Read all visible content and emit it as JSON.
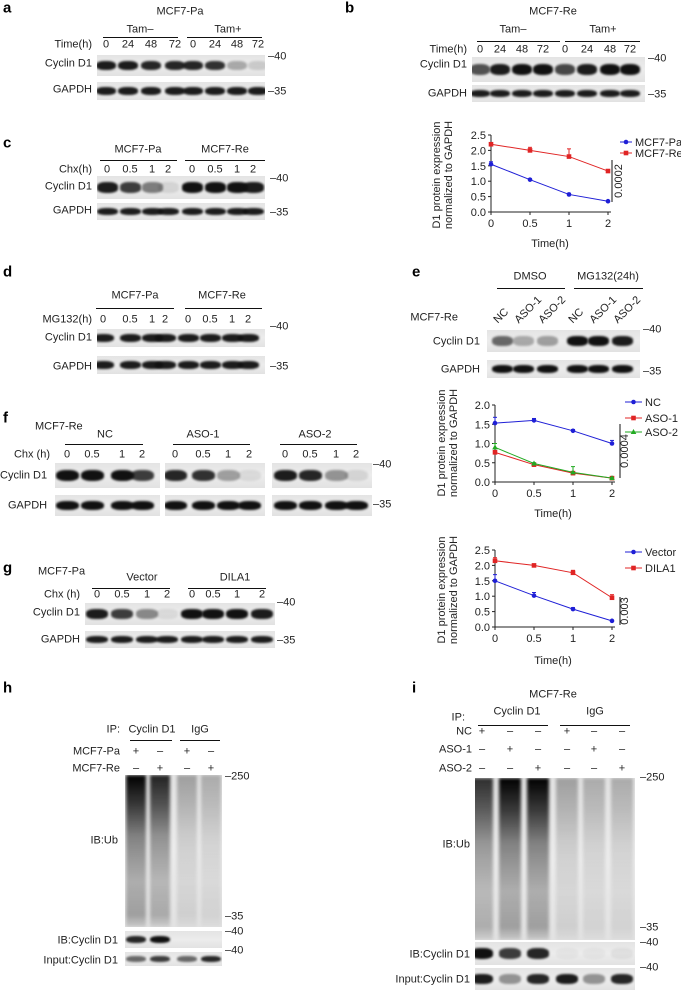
{
  "panels": {
    "a": {
      "letter": "a",
      "title": "MCF7-Pa",
      "groups": [
        "Tam–",
        "Tam+"
      ],
      "row_label": "Time(h)",
      "lanes": [
        "0",
        "24",
        "48",
        "72",
        "0",
        "24",
        "48",
        "72"
      ],
      "blots": [
        {
          "label": "Cyclin D1",
          "intensity": [
            0.95,
            0.95,
            0.9,
            0.9,
            0.9,
            0.85,
            0.3,
            0.15
          ]
        },
        {
          "label": "GAPDH",
          "intensity": [
            0.95,
            0.95,
            0.95,
            0.95,
            0.95,
            0.95,
            0.95,
            0.95
          ]
        }
      ],
      "markers": [
        "40",
        "35"
      ]
    },
    "b": {
      "letter": "b",
      "title": "MCF7-Re",
      "groups": [
        "Tam–",
        "Tam+"
      ],
      "row_label": "Time(h)",
      "lanes": [
        "0",
        "24",
        "48",
        "72",
        "0",
        "24",
        "48",
        "72"
      ],
      "blots": [
        {
          "label": "Cyclin D1",
          "intensity": [
            0.7,
            0.95,
            1,
            1,
            0.75,
            0.95,
            1,
            1
          ]
        },
        {
          "label": "GAPDH",
          "intensity": [
            0.95,
            0.95,
            0.95,
            0.95,
            0.95,
            0.95,
            0.95,
            0.95
          ]
        }
      ],
      "markers": [
        "40",
        "35"
      ]
    },
    "c": {
      "letter": "c",
      "groups": [
        "MCF7-Pa",
        "MCF7-Re"
      ],
      "row_label": "Chx(h)",
      "lanes": [
        "0",
        "0.5",
        "1",
        "2",
        "0",
        "0.5",
        "1",
        "2"
      ],
      "blots": [
        {
          "label": "Cyclin D1",
          "intensity": [
            0.95,
            0.8,
            0.5,
            0.1,
            1,
            1,
            1,
            0.95
          ]
        },
        {
          "label": "GAPDH",
          "intensity": [
            0.95,
            0.95,
            0.95,
            0.95,
            0.95,
            0.95,
            0.95,
            0.95
          ]
        }
      ],
      "markers": [
        "40",
        "35"
      ]
    },
    "d": {
      "letter": "d",
      "groups": [
        "MCF7-Pa",
        "MCF7-Re"
      ],
      "row_label": "MG132(h)",
      "lanes": [
        "0",
        "0.5",
        "1",
        "2",
        "0",
        "0.5",
        "1",
        "2"
      ],
      "blots": [
        {
          "label": "Cyclin D1",
          "intensity": [
            0.95,
            0.95,
            0.95,
            0.95,
            0.95,
            0.95,
            0.95,
            0.95
          ]
        },
        {
          "label": "GAPDH",
          "intensity": [
            0.95,
            0.95,
            0.95,
            0.95,
            0.95,
            0.95,
            0.95,
            0.95
          ]
        }
      ],
      "markers": [
        "40",
        "35"
      ]
    },
    "e": {
      "letter": "e",
      "groups": [
        "DMSO",
        "MG132(24h)"
      ],
      "row_label": "MCF7-Re",
      "lanes": [
        "NC",
        "ASO-1",
        "ASO-2",
        "NC",
        "ASO-1",
        "ASO-2"
      ],
      "blots": [
        {
          "label": "Cyclin D1",
          "intensity": [
            0.6,
            0.3,
            0.35,
            1,
            1,
            0.95
          ]
        },
        {
          "label": "GAPDH",
          "intensity": [
            1,
            1,
            1,
            1,
            1,
            1
          ]
        }
      ],
      "markers": [
        "40",
        "35"
      ]
    },
    "f": {
      "letter": "f",
      "cell_line": "MCF7-Re",
      "groups": [
        "NC",
        "ASO-1",
        "ASO-2"
      ],
      "row_label": "Chx (h)",
      "lanes": [
        "0",
        "0.5",
        "1",
        "2",
        "0",
        "0.5",
        "1",
        "2",
        "0",
        "0.5",
        "1",
        "2"
      ],
      "blots": [
        {
          "label": "Cyclin D1",
          "intensity": [
            1,
            1,
            1,
            0.8,
            0.9,
            0.85,
            0.35,
            0.08,
            0.95,
            0.9,
            0.4,
            0.1
          ]
        },
        {
          "label": "GAPDH",
          "intensity": [
            1,
            1,
            1,
            1,
            1,
            1,
            1,
            1,
            1,
            1,
            1,
            1
          ]
        }
      ],
      "markers": [
        "40",
        "35"
      ]
    },
    "g": {
      "letter": "g",
      "cell_line": "MCF7-Pa",
      "groups": [
        "Vector",
        "DILA1"
      ],
      "row_label": "Chx (h)",
      "lanes": [
        "0",
        "0.5",
        "1",
        "2",
        "0",
        "0.5",
        "1",
        "2"
      ],
      "blots": [
        {
          "label": "Cyclin D1",
          "intensity": [
            0.95,
            0.8,
            0.45,
            0.08,
            1,
            1,
            1,
            0.95
          ]
        },
        {
          "label": "GAPDH",
          "intensity": [
            0.95,
            0.95,
            0.95,
            0.95,
            0.95,
            0.95,
            0.95,
            0.95
          ]
        }
      ],
      "markers": [
        "40",
        "35"
      ]
    },
    "h": {
      "letter": "h",
      "ip_label": "IP:",
      "groups": [
        "Cyclin D1",
        "IgG"
      ],
      "conditions": [
        {
          "label": "MCF7-Pa",
          "signs": [
            "+",
            "–",
            "+",
            "–"
          ]
        },
        {
          "label": "MCF7-Re",
          "signs": [
            "–",
            "+",
            "–",
            "+"
          ]
        }
      ],
      "blots": [
        {
          "label": "IB:Ub",
          "intensity": [
            1,
            0.85,
            0.3,
            0.25
          ]
        },
        {
          "label": "IB:Cyclin D1",
          "intensity": [
            0.9,
            1,
            0,
            0
          ]
        },
        {
          "label": "Input:Cyclin D1",
          "intensity": [
            0.6,
            0.8,
            0.6,
            0.9
          ]
        }
      ],
      "markers": [
        "250",
        "35",
        "40",
        "40"
      ]
    },
    "i": {
      "letter": "i",
      "title": "MCF7-Re",
      "ip_label": "IP:",
      "groups": [
        "Cyclin D1",
        "IgG"
      ],
      "conditions": [
        {
          "label": "NC",
          "signs": [
            "+",
            "–",
            "–",
            "+",
            "–",
            "–"
          ]
        },
        {
          "label": "ASO-1",
          "signs": [
            "–",
            "+",
            "–",
            "–",
            "+",
            "–"
          ]
        },
        {
          "label": "ASO-2",
          "signs": [
            "–",
            "–",
            "+",
            "–",
            "–",
            "+"
          ]
        }
      ],
      "blots": [
        {
          "label": "IB:Ub",
          "intensity": [
            0.8,
            1,
            1,
            0.3,
            0.25,
            0.25
          ]
        },
        {
          "label": "IB:Cyclin D1",
          "intensity": [
            1,
            0.8,
            0.9,
            0.03,
            0.03,
            0.05
          ]
        },
        {
          "label": "Input:Cyclin D1",
          "intensity": [
            0.95,
            0.4,
            0.9,
            0.95,
            0.4,
            0.9
          ]
        }
      ],
      "markers": [
        "250",
        "35",
        "40",
        "40"
      ]
    }
  },
  "chart_data": [
    {
      "type": "line",
      "panel": "b",
      "x": [
        "0",
        "0.5",
        "1",
        "2"
      ],
      "xlabel": "Time(h)",
      "ylabel": [
        "D1 protein expression",
        "normalized to GAPDH"
      ],
      "ylim": [
        0,
        2.5
      ],
      "yticks": [
        "0.0",
        "0.5",
        "1.0",
        "1.5",
        "2.0",
        "2.5"
      ],
      "legend": "right",
      "p_value": "0.0002",
      "series": [
        {
          "name": "MCF7-Pa",
          "color": "#1f1fd6",
          "marker": "circle",
          "values": [
            1.55,
            1.05,
            0.57,
            0.35
          ],
          "errors": [
            0.08,
            0.03,
            0.04,
            0.02
          ]
        },
        {
          "name": "MCF7-Re",
          "color": "#e02424",
          "marker": "square",
          "values": [
            2.2,
            2.0,
            1.8,
            1.33
          ],
          "errors": [
            0.05,
            0.1,
            0.25,
            0.04
          ]
        }
      ]
    },
    {
      "type": "line",
      "panel": "e",
      "x": [
        "0",
        "0.5",
        "1",
        "2"
      ],
      "xlabel": "Time(h)",
      "ylabel": [
        "D1 protein expression",
        "normalized to GAPDH"
      ],
      "ylim": [
        0,
        2.0
      ],
      "yticks": [
        "0.0",
        "0.5",
        "1.0",
        "1.5",
        "2.0"
      ],
      "legend": "right",
      "p_value": "0.0004",
      "series": [
        {
          "name": "NC",
          "color": "#1f1fd6",
          "marker": "circle",
          "values": [
            1.53,
            1.6,
            1.33,
            1.0
          ],
          "errors": [
            0.15,
            0.05,
            0.03,
            0.08
          ]
        },
        {
          "name": "ASO-1",
          "color": "#e02424",
          "marker": "square",
          "values": [
            0.77,
            0.45,
            0.23,
            0.1
          ],
          "errors": [
            0.05,
            0.02,
            0.02,
            0.03
          ]
        },
        {
          "name": "ASO-2",
          "color": "#22aa22",
          "marker": "triangle",
          "values": [
            0.9,
            0.48,
            0.25,
            0.1
          ],
          "errors": [
            0.1,
            0.02,
            0.15,
            0.02
          ]
        }
      ]
    },
    {
      "type": "line",
      "panel": "g",
      "x": [
        "0",
        "0.5",
        "1",
        "2"
      ],
      "xlabel": "Time(h)",
      "ylabel": [
        "D1 protein expression",
        "normalized to GAPDH"
      ],
      "ylim": [
        0,
        2.5
      ],
      "yticks": [
        "0.0",
        "0.5",
        "1.0",
        "1.5",
        "2.0",
        "2.5"
      ],
      "legend": "right",
      "p_value": "0.003",
      "series": [
        {
          "name": "Vector",
          "color": "#1f1fd6",
          "marker": "circle",
          "values": [
            1.5,
            1.02,
            0.58,
            0.2
          ],
          "errors": [
            0.2,
            0.1,
            0.05,
            0.02
          ]
        },
        {
          "name": "DILA1",
          "color": "#e02424",
          "marker": "square",
          "values": [
            2.15,
            2.0,
            1.76,
            0.95
          ],
          "errors": [
            0.1,
            0.03,
            0.08,
            0.1
          ]
        }
      ]
    }
  ]
}
